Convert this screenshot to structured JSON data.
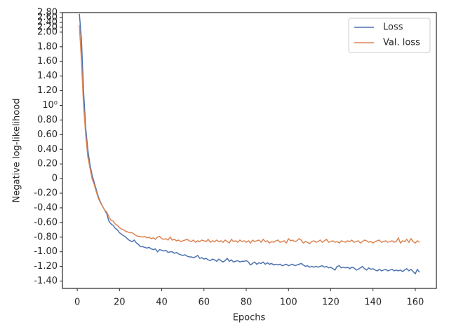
{
  "chart_data": {
    "type": "line",
    "xlabel": "Epochs",
    "ylabel": "Negative log-likelihood",
    "x": [
      1,
      2,
      3,
      4,
      5,
      6,
      7,
      8,
      9,
      10,
      11,
      12,
      13,
      14,
      15,
      16,
      17,
      18,
      19,
      20,
      21,
      22,
      23,
      24,
      25,
      26,
      27,
      28,
      29,
      30,
      31,
      32,
      33,
      34,
      35,
      36,
      37,
      38,
      39,
      40,
      41,
      42,
      43,
      44,
      45,
      46,
      47,
      48,
      49,
      50,
      51,
      52,
      53,
      54,
      55,
      56,
      57,
      58,
      59,
      60,
      61,
      62,
      63,
      64,
      65,
      66,
      67,
      68,
      69,
      70,
      71,
      72,
      73,
      74,
      75,
      76,
      77,
      78,
      79,
      80,
      81,
      82,
      83,
      84,
      85,
      86,
      87,
      88,
      89,
      90,
      91,
      92,
      93,
      94,
      95,
      96,
      97,
      98,
      99,
      100,
      101,
      102,
      103,
      104,
      105,
      106,
      107,
      108,
      109,
      110,
      111,
      112,
      113,
      114,
      115,
      116,
      117,
      118,
      119,
      120,
      121,
      122,
      123,
      124,
      125,
      126,
      127,
      128,
      129,
      130,
      131,
      132,
      133,
      134,
      135,
      136,
      137,
      138,
      139,
      140,
      141,
      142,
      143,
      144,
      145,
      146,
      147,
      148,
      149,
      150,
      151,
      152,
      153,
      154,
      155,
      156,
      157,
      158,
      159,
      160,
      161,
      162
    ],
    "series": [
      {
        "name": "Loss",
        "color": "#4c72b0",
        "values": [
          2.75,
          1.9,
          1.2,
          0.7,
          0.4,
          0.2,
          0.05,
          -0.05,
          -0.15,
          -0.25,
          -0.32,
          -0.38,
          -0.43,
          -0.48,
          -0.58,
          -0.62,
          -0.64,
          -0.68,
          -0.7,
          -0.74,
          -0.76,
          -0.78,
          -0.8,
          -0.83,
          -0.85,
          -0.86,
          -0.84,
          -0.88,
          -0.9,
          -0.93,
          -0.93,
          -0.94,
          -0.95,
          -0.94,
          -0.96,
          -0.97,
          -0.96,
          -1.0,
          -0.97,
          -0.98,
          -0.99,
          -0.98,
          -1.01,
          -1.0,
          -1.0,
          -1.02,
          -1.01,
          -1.03,
          -1.04,
          -1.05,
          -1.04,
          -1.06,
          -1.07,
          -1.07,
          -1.08,
          -1.07,
          -1.05,
          -1.09,
          -1.08,
          -1.1,
          -1.09,
          -1.11,
          -1.12,
          -1.1,
          -1.11,
          -1.13,
          -1.1,
          -1.12,
          -1.14,
          -1.12,
          -1.09,
          -1.13,
          -1.11,
          -1.14,
          -1.13,
          -1.12,
          -1.14,
          -1.13,
          -1.13,
          -1.12,
          -1.14,
          -1.18,
          -1.16,
          -1.14,
          -1.17,
          -1.15,
          -1.16,
          -1.14,
          -1.17,
          -1.15,
          -1.17,
          -1.16,
          -1.18,
          -1.17,
          -1.18,
          -1.17,
          -1.19,
          -1.18,
          -1.17,
          -1.19,
          -1.18,
          -1.17,
          -1.19,
          -1.18,
          -1.17,
          -1.16,
          -1.18,
          -1.2,
          -1.19,
          -1.21,
          -1.2,
          -1.21,
          -1.2,
          -1.21,
          -1.2,
          -1.19,
          -1.21,
          -1.2,
          -1.22,
          -1.21,
          -1.23,
          -1.25,
          -1.2,
          -1.19,
          -1.22,
          -1.21,
          -1.22,
          -1.21,
          -1.23,
          -1.21,
          -1.22,
          -1.25,
          -1.24,
          -1.22,
          -1.2,
          -1.23,
          -1.25,
          -1.22,
          -1.24,
          -1.23,
          -1.25,
          -1.26,
          -1.24,
          -1.26,
          -1.25,
          -1.24,
          -1.26,
          -1.25,
          -1.24,
          -1.26,
          -1.25,
          -1.26,
          -1.25,
          -1.27,
          -1.25,
          -1.23,
          -1.26,
          -1.24,
          -1.27,
          -1.3,
          -1.24,
          -1.28
        ]
      },
      {
        "name": "Val. loss",
        "color": "#dd8452",
        "values": [
          2.3,
          1.6,
          1.0,
          0.6,
          0.3,
          0.15,
          0.0,
          -0.08,
          -0.18,
          -0.27,
          -0.33,
          -0.38,
          -0.43,
          -0.46,
          -0.52,
          -0.57,
          -0.58,
          -0.62,
          -0.64,
          -0.67,
          -0.69,
          -0.7,
          -0.72,
          -0.73,
          -0.74,
          -0.74,
          -0.76,
          -0.78,
          -0.79,
          -0.79,
          -0.8,
          -0.79,
          -0.81,
          -0.8,
          -0.82,
          -0.81,
          -0.83,
          -0.8,
          -0.79,
          -0.82,
          -0.83,
          -0.82,
          -0.84,
          -0.8,
          -0.84,
          -0.83,
          -0.85,
          -0.84,
          -0.86,
          -0.85,
          -0.84,
          -0.83,
          -0.85,
          -0.86,
          -0.84,
          -0.87,
          -0.85,
          -0.86,
          -0.84,
          -0.85,
          -0.86,
          -0.83,
          -0.87,
          -0.85,
          -0.86,
          -0.84,
          -0.86,
          -0.85,
          -0.87,
          -0.84,
          -0.86,
          -0.88,
          -0.83,
          -0.86,
          -0.85,
          -0.87,
          -0.84,
          -0.86,
          -0.85,
          -0.87,
          -0.85,
          -0.88,
          -0.84,
          -0.86,
          -0.85,
          -0.84,
          -0.87,
          -0.83,
          -0.86,
          -0.85,
          -0.88,
          -0.86,
          -0.87,
          -0.85,
          -0.84,
          -0.87,
          -0.86,
          -0.85,
          -0.88,
          -0.82,
          -0.85,
          -0.84,
          -0.86,
          -0.85,
          -0.82,
          -0.84,
          -0.88,
          -0.86,
          -0.87,
          -0.89,
          -0.86,
          -0.85,
          -0.87,
          -0.86,
          -0.84,
          -0.87,
          -0.85,
          -0.83,
          -0.87,
          -0.86,
          -0.85,
          -0.87,
          -0.86,
          -0.88,
          -0.85,
          -0.86,
          -0.87,
          -0.85,
          -0.86,
          -0.84,
          -0.87,
          -0.86,
          -0.85,
          -0.88,
          -0.86,
          -0.84,
          -0.85,
          -0.87,
          -0.86,
          -0.88,
          -0.86,
          -0.85,
          -0.84,
          -0.87,
          -0.86,
          -0.85,
          -0.87,
          -0.86,
          -0.85,
          -0.87,
          -0.86,
          -0.81,
          -0.88,
          -0.85,
          -0.86,
          -0.83,
          -0.87,
          -0.82,
          -0.86,
          -0.88,
          -0.85,
          -0.87
        ]
      }
    ],
    "xlim": [
      -7,
      170
    ],
    "xticks": [
      0,
      20,
      40,
      60,
      80,
      100,
      120,
      140,
      160
    ],
    "ylim": [
      -1.5,
      2.8
    ],
    "yticks": [
      {
        "value": 2.8,
        "label": "2.80"
      },
      {
        "value": 2.6,
        "label": "2.60"
      },
      {
        "value": 2.4,
        "label": "2.40"
      },
      {
        "value": 2.2,
        "label": "2.20"
      },
      {
        "value": 2.0,
        "label": "2.00"
      },
      {
        "value": 1.8,
        "label": "1.80"
      },
      {
        "value": 1.6,
        "label": "1.60"
      },
      {
        "value": 1.4,
        "label": "1.40"
      },
      {
        "value": 1.2,
        "label": "1.20"
      },
      {
        "value": 1,
        "label": "10⁰"
      },
      {
        "value": 0.8,
        "label": "0.80"
      },
      {
        "value": 0.6,
        "label": "0.60"
      },
      {
        "value": 0.4,
        "label": "0.40"
      },
      {
        "value": 0.2,
        "label": "0.20"
      },
      0,
      {
        "value": -0.2,
        "label": "-0.20"
      },
      {
        "value": -0.4,
        "label": "-0.40"
      },
      {
        "value": -0.6,
        "label": "-0.60"
      },
      {
        "value": -0.8,
        "label": "-0.80"
      },
      {
        "value": -1.0,
        "label": "-1.00"
      },
      {
        "value": -1.2,
        "label": "-1.20"
      },
      {
        "value": -1.4,
        "label": "-1.40"
      }
    ],
    "legend": "upper right",
    "grid": false
  }
}
